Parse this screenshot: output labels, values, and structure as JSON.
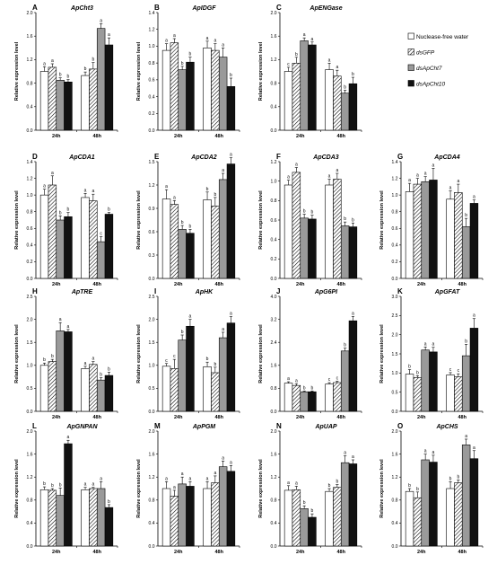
{
  "figure": {
    "y_axis_label": "Relative expression level",
    "groups": [
      "24h",
      "48h"
    ],
    "legend": {
      "position": "right of panel C",
      "entries": [
        {
          "label": "Nuclease-free water",
          "italic": false
        },
        {
          "label": "dsGFP",
          "italic": true
        },
        {
          "label": "dsApCht7",
          "italic": true
        },
        {
          "label": "dsApCht10",
          "italic": true
        }
      ]
    },
    "series_styles": [
      {
        "fill": "#ffffff",
        "pattern": "none"
      },
      {
        "fill": "#ffffff",
        "pattern": "diagonal-hatch"
      },
      {
        "fill": "#9a9a9a",
        "pattern": "none"
      },
      {
        "fill": "#111111",
        "pattern": "none"
      }
    ]
  },
  "chart_data": [
    {
      "letter": "A",
      "type": "bar",
      "title": "ApCht3",
      "ylim": [
        0,
        2.0
      ],
      "yticks": [
        "0.0",
        "0.4",
        "0.8",
        "1.2",
        "1.6",
        "2.0"
      ],
      "categories": [
        "24h",
        "48h"
      ],
      "values": [
        [
          1.0,
          1.07,
          0.85,
          0.82
        ],
        [
          0.93,
          1.04,
          1.73,
          1.45
        ]
      ],
      "errors": [
        [
          0.08,
          0.06,
          0.04,
          0.04
        ],
        [
          0.06,
          0.11,
          0.08,
          0.12
        ]
      ],
      "letters": [
        [
          "a",
          "a",
          "b",
          "b"
        ],
        [
          "b",
          "b",
          "a",
          "a"
        ]
      ]
    },
    {
      "letter": "B",
      "type": "bar",
      "title": "ApIDGF",
      "ylim": [
        0,
        1.4
      ],
      "yticks": [
        "0.0",
        "0.2",
        "0.4",
        "0.6",
        "0.8",
        "1.0",
        "1.2",
        "1.4"
      ],
      "categories": [
        "24h",
        "48h"
      ],
      "values": [
        [
          0.95,
          1.04,
          0.72,
          0.81
        ],
        [
          0.98,
          0.95,
          0.87,
          0.52
        ]
      ],
      "errors": [
        [
          0.08,
          0.05,
          0.04,
          0.06
        ],
        [
          0.08,
          0.08,
          0.11,
          0.1
        ]
      ],
      "letters": [
        [
          "a",
          "a",
          "b",
          "b"
        ],
        [
          "a",
          "a",
          "a",
          "b"
        ]
      ]
    },
    {
      "letter": "C",
      "type": "bar",
      "title": "ApENGase",
      "ylim": [
        0,
        2.0
      ],
      "yticks": [
        "0.0",
        "0.4",
        "0.8",
        "1.2",
        "1.6",
        "2.0"
      ],
      "categories": [
        "24h",
        "48h"
      ],
      "values": [
        [
          1.0,
          1.14,
          1.52,
          1.45
        ],
        [
          1.03,
          0.92,
          0.63,
          0.79
        ]
      ],
      "errors": [
        [
          0.07,
          0.1,
          0.05,
          0.05
        ],
        [
          0.11,
          0.1,
          0.05,
          0.11
        ]
      ],
      "letters": [
        [
          "c",
          "b",
          "a",
          "a"
        ],
        [
          "a",
          "a",
          "b",
          "b"
        ]
      ]
    },
    {
      "letter": "D",
      "type": "bar",
      "title": "ApCDA1",
      "ylim": [
        0,
        1.4
      ],
      "yticks": [
        "0.0",
        "0.2",
        "0.4",
        "0.6",
        "0.8",
        "1.0",
        "1.2",
        "1.4"
      ],
      "categories": [
        "24h",
        "48h"
      ],
      "values": [
        [
          1.0,
          1.12,
          0.7,
          0.74
        ],
        [
          0.97,
          0.93,
          0.44,
          0.77
        ]
      ],
      "errors": [
        [
          0.07,
          0.11,
          0.05,
          0.05
        ],
        [
          0.05,
          0.08,
          0.06,
          0.02
        ]
      ],
      "letters": [
        [
          "a",
          "a",
          "b",
          "b"
        ],
        [
          "a",
          "a",
          "c",
          "b"
        ]
      ]
    },
    {
      "letter": "E",
      "type": "bar",
      "title": "ApCDA2",
      "ylim": [
        0,
        1.5
      ],
      "yticks": [
        "0.0",
        "0.3",
        "0.6",
        "0.9",
        "1.2",
        "1.5"
      ],
      "categories": [
        "24h",
        "48h"
      ],
      "values": [
        [
          1.02,
          0.95,
          0.63,
          0.58
        ],
        [
          1.01,
          0.93,
          1.27,
          1.47
        ]
      ],
      "errors": [
        [
          0.12,
          0.05,
          0.05,
          0.05
        ],
        [
          0.1,
          0.11,
          0.08,
          0.08
        ]
      ],
      "letters": [
        [
          "a",
          "a",
          "b",
          "b"
        ],
        [
          "b",
          "b",
          "a",
          "a"
        ]
      ]
    },
    {
      "letter": "F",
      "type": "bar",
      "title": "ApCDA3",
      "ylim": [
        0,
        1.2
      ],
      "yticks": [
        "0.0",
        "0.2",
        "0.4",
        "0.6",
        "0.8",
        "1.0",
        "1.2"
      ],
      "categories": [
        "24h",
        "48h"
      ],
      "values": [
        [
          0.96,
          1.09,
          0.62,
          0.61
        ],
        [
          0.96,
          1.02,
          0.54,
          0.53
        ]
      ],
      "errors": [
        [
          0.05,
          0.05,
          0.04,
          0.04
        ],
        [
          0.06,
          0.06,
          0.04,
          0.04
        ]
      ],
      "letters": [
        [
          "a",
          "a",
          "b",
          "b"
        ],
        [
          "a",
          "a",
          "b",
          "b"
        ]
      ]
    },
    {
      "letter": "G",
      "type": "bar",
      "title": "ApCDA4",
      "ylim": [
        0,
        1.4
      ],
      "yticks": [
        "0.0",
        "0.2",
        "0.4",
        "0.6",
        "0.8",
        "1.0",
        "1.2",
        "1.4"
      ],
      "categories": [
        "24h",
        "48h"
      ],
      "values": [
        [
          1.04,
          1.13,
          1.16,
          1.18
        ],
        [
          0.95,
          1.03,
          0.62,
          0.9
        ]
      ],
      "errors": [
        [
          0.1,
          0.07,
          0.06,
          0.14
        ],
        [
          0.1,
          0.1,
          0.1,
          0.04
        ]
      ],
      "letters": [
        [
          "a",
          "a",
          "a",
          "a"
        ],
        [
          "a",
          "a",
          "b",
          "a"
        ]
      ]
    },
    {
      "letter": "H",
      "type": "bar",
      "title": "ApTRE",
      "ylim": [
        0,
        2.5
      ],
      "yticks": [
        "0.0",
        "0.5",
        "1.0",
        "1.5",
        "2.0",
        "2.5"
      ],
      "categories": [
        "24h",
        "48h"
      ],
      "values": [
        [
          1.0,
          1.08,
          1.75,
          1.73
        ],
        [
          0.93,
          1.02,
          0.68,
          0.78
        ]
      ],
      "errors": [
        [
          0.05,
          0.05,
          0.18,
          0.05
        ],
        [
          0.05,
          0.06,
          0.05,
          0.07
        ]
      ],
      "letters": [
        [
          "b",
          "b",
          "a",
          "a"
        ],
        [
          "a",
          "a",
          "b",
          "b"
        ]
      ]
    },
    {
      "letter": "I",
      "type": "bar",
      "title": "ApHK",
      "ylim": [
        0,
        2.5
      ],
      "yticks": [
        "0.0",
        "0.5",
        "1.0",
        "1.5",
        "2.0",
        "2.5"
      ],
      "categories": [
        "24h",
        "48h"
      ],
      "values": [
        [
          0.98,
          0.93,
          1.55,
          1.85
        ],
        [
          0.97,
          0.84,
          1.6,
          1.92
        ]
      ],
      "errors": [
        [
          0.06,
          0.2,
          0.11,
          0.15
        ],
        [
          0.1,
          0.12,
          0.12,
          0.14
        ]
      ],
      "letters": [
        [
          "c",
          "c",
          "b",
          "a"
        ],
        [
          "b",
          "b",
          "a",
          "a"
        ]
      ]
    },
    {
      "letter": "J",
      "type": "bar",
      "title": "ApG6PI",
      "ylim": [
        0,
        4.0
      ],
      "yticks": [
        "0.0",
        "0.8",
        "1.6",
        "2.4",
        "3.2",
        "4.0"
      ],
      "categories": [
        "24h",
        "48h"
      ],
      "values": [
        [
          0.98,
          0.9,
          0.68,
          0.68
        ],
        [
          0.95,
          1.0,
          2.1,
          3.15
        ]
      ],
      "errors": [
        [
          0.05,
          0.06,
          0.03,
          0.03
        ],
        [
          0.05,
          0.05,
          0.1,
          0.15
        ]
      ],
      "letters": [
        [
          "a",
          "a",
          "b",
          "b"
        ],
        [
          "c",
          "c",
          "b",
          "a"
        ]
      ]
    },
    {
      "letter": "K",
      "type": "bar",
      "title": "ApGFAT",
      "ylim": [
        0,
        3.0
      ],
      "yticks": [
        "0.0",
        "0.5",
        "1.0",
        "1.5",
        "2.0",
        "2.5",
        "3.0"
      ],
      "categories": [
        "24h",
        "48h"
      ],
      "values": [
        [
          0.97,
          0.88,
          1.6,
          1.55
        ],
        [
          0.95,
          0.9,
          1.45,
          2.17
        ]
      ],
      "errors": [
        [
          0.12,
          0.05,
          0.08,
          0.12
        ],
        [
          0.06,
          0.08,
          0.3,
          0.25
        ]
      ],
      "letters": [
        [
          "b",
          "b",
          "a",
          "a"
        ],
        [
          "c",
          "c",
          "b",
          "a"
        ]
      ]
    },
    {
      "letter": "L",
      "type": "bar",
      "title": "ApGNPAN",
      "ylim": [
        0,
        2.0
      ],
      "yticks": [
        "0.0",
        "0.4",
        "0.8",
        "1.2",
        "1.6",
        "2.0"
      ],
      "categories": [
        "24h",
        "48h"
      ],
      "values": [
        [
          0.98,
          0.97,
          0.88,
          1.78
        ],
        [
          0.98,
          1.0,
          1.0,
          0.67
        ]
      ],
      "errors": [
        [
          0.05,
          0.03,
          0.13,
          0.06
        ],
        [
          0.04,
          0.02,
          0.12,
          0.05
        ]
      ],
      "letters": [
        [
          "b",
          "b",
          "b",
          "a"
        ],
        [
          "a",
          "a",
          "a",
          "b"
        ]
      ]
    },
    {
      "letter": "M",
      "type": "bar",
      "title": "ApPGM",
      "ylim": [
        0,
        2.0
      ],
      "yticks": [
        "0.0",
        "0.4",
        "0.8",
        "1.2",
        "1.6",
        "2.0"
      ],
      "categories": [
        "24h",
        "48h"
      ],
      "values": [
        [
          1.0,
          0.87,
          1.08,
          1.04
        ],
        [
          1.0,
          1.1,
          1.38,
          1.3
        ]
      ],
      "errors": [
        [
          0.12,
          0.1,
          0.12,
          0.08
        ],
        [
          0.12,
          0.12,
          0.1,
          0.1
        ]
      ],
      "letters": [
        [
          "a",
          "a",
          "a",
          "a"
        ],
        [
          "a",
          "a",
          "a",
          "a"
        ]
      ]
    },
    {
      "letter": "N",
      "type": "bar",
      "title": "ApUAP",
      "ylim": [
        0,
        2.0
      ],
      "yticks": [
        "0.0",
        "0.4",
        "0.8",
        "1.2",
        "1.6",
        "2.0"
      ],
      "categories": [
        "24h",
        "48h"
      ],
      "values": [
        [
          0.97,
          0.98,
          0.65,
          0.5
        ],
        [
          0.95,
          1.02,
          1.45,
          1.43
        ]
      ],
      "errors": [
        [
          0.08,
          0.06,
          0.05,
          0.06
        ],
        [
          0.05,
          0.05,
          0.12,
          0.07
        ]
      ],
      "letters": [
        [
          "a",
          "a",
          "b",
          "b"
        ],
        [
          "b",
          "b",
          "a",
          "a"
        ]
      ]
    },
    {
      "letter": "O",
      "type": "bar",
      "title": "ApCHS",
      "ylim": [
        0,
        2.0
      ],
      "yticks": [
        "0.0",
        "0.4",
        "0.8",
        "1.2",
        "1.6",
        "2.0"
      ],
      "categories": [
        "24h",
        "48h"
      ],
      "values": [
        [
          0.95,
          0.84,
          1.5,
          1.46
        ],
        [
          1.0,
          1.1,
          1.76,
          1.52
        ]
      ],
      "errors": [
        [
          0.05,
          0.1,
          0.1,
          0.12
        ],
        [
          0.12,
          0.05,
          0.1,
          0.14
        ]
      ],
      "letters": [
        [
          "b",
          "b",
          "a",
          "a"
        ],
        [
          "b",
          "b",
          "a",
          "a"
        ]
      ]
    }
  ]
}
